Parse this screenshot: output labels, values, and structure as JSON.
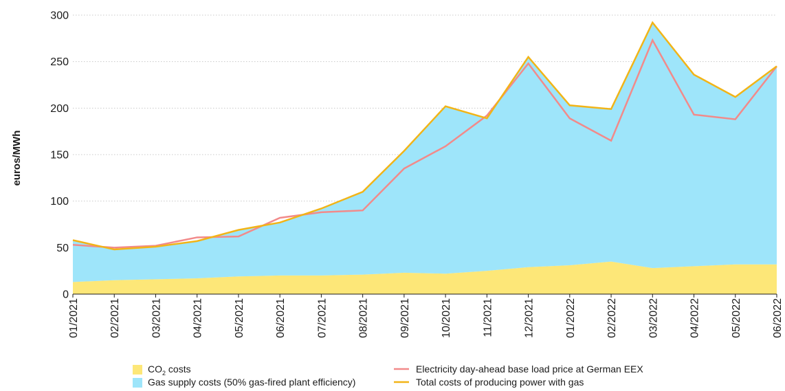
{
  "chart_data": {
    "type": "area",
    "categories": [
      "01/2021",
      "02/2021",
      "03/2021",
      "04/2021",
      "05/2021",
      "06/2021",
      "07/2021",
      "08/2021",
      "09/2021",
      "10/2021",
      "11/2021",
      "12/2021",
      "01/2022",
      "02/2022",
      "03/2022",
      "04/2022",
      "05/2022",
      "06/2022"
    ],
    "ylabel": "euros/MWh",
    "ylim": [
      0,
      300
    ],
    "yticks": [
      0,
      50,
      100,
      150,
      200,
      250,
      300
    ],
    "grid": "horizontal dotted",
    "legend_position": "bottom",
    "stacked_areas": [
      {
        "name_main": "CO",
        "name_sub": "2",
        "name_rest": " costs",
        "color": "#fde778",
        "values": [
          13,
          15,
          16,
          17,
          19,
          20,
          20,
          21,
          23,
          22,
          25,
          29,
          31,
          35,
          28,
          30,
          32,
          32
        ]
      },
      {
        "name": "Gas supply costs (50% gas-fired plant efficiency)",
        "color": "#9ee5fa",
        "values": [
          45,
          33,
          35,
          40,
          50,
          57,
          72,
          89,
          131,
          180,
          164,
          226,
          172,
          164,
          264,
          206,
          180,
          213
        ]
      }
    ],
    "lines": [
      {
        "name": "Electricity day-ahead base load price at German EEX",
        "color": "#f28a8a",
        "values": [
          53,
          50,
          52,
          61,
          62,
          82,
          88,
          90,
          135,
          159,
          192,
          248,
          189,
          165,
          273,
          193,
          188,
          245
        ]
      },
      {
        "name": "Total costs of producing power with gas",
        "color": "#f2b417",
        "values": [
          58,
          48,
          51,
          57,
          69,
          77,
          92,
          110,
          154,
          202,
          189,
          255,
          203,
          199,
          292,
          236,
          212,
          245
        ]
      }
    ]
  }
}
